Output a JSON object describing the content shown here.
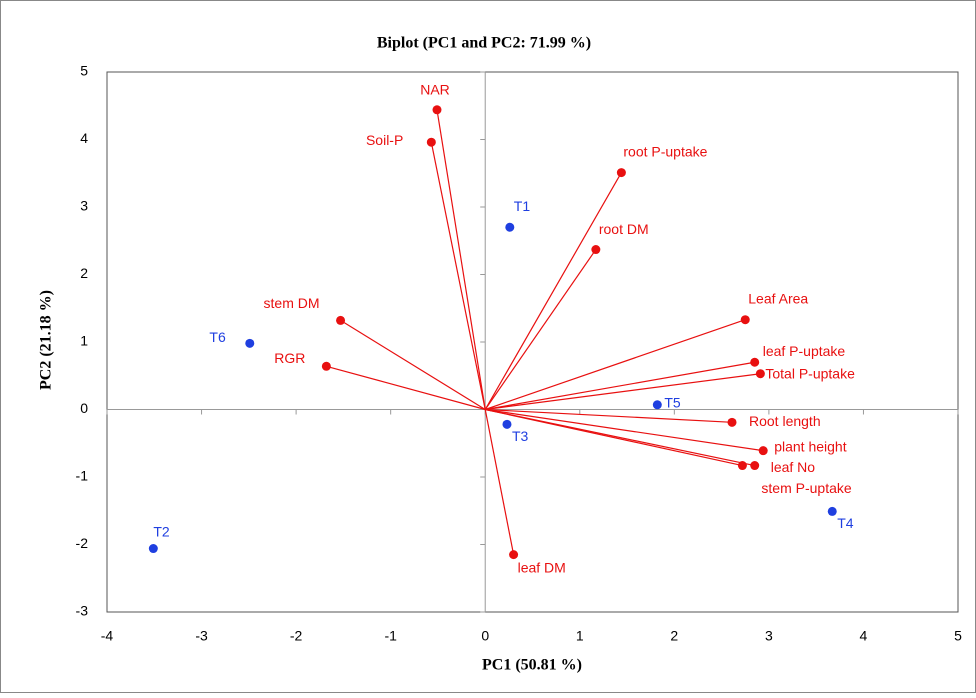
{
  "chart_data": {
    "type": "biplot",
    "title": "Biplot (PC1 and PC2: 71.99 %)",
    "x_label": "PC1 (50.81 %)",
    "y_label": "PC2 (21.18 %)",
    "xlim": [
      -4,
      5
    ],
    "xticks": [
      -4,
      -3,
      -2,
      -1,
      0,
      1,
      2,
      3,
      4,
      5
    ],
    "ylim": [
      -3,
      5
    ],
    "yticks": [
      -3,
      -2,
      -1,
      0,
      1,
      2,
      3,
      4,
      5
    ],
    "series": [
      {
        "color": "#1f3fe0",
        "arrows": false,
        "labels": [
          "T1",
          "T6",
          "T2",
          "T3",
          "T5",
          "T4"
        ],
        "x": [
          0.26,
          -2.49,
          -3.51,
          0.23,
          1.82,
          3.67
        ],
        "y": [
          2.7,
          0.98,
          -2.06,
          -0.22,
          0.07,
          -1.51
        ]
      },
      {
        "color": "#e81010",
        "arrows": true,
        "labels": [
          "NAR",
          "Soil-P",
          "root P-uptake",
          "root DM",
          "stem DM",
          "RGR",
          "Leaf Area",
          "leaf P-uptake",
          "Total P-uptake",
          "Root length",
          "plant height",
          "leaf No",
          "stem P-uptake",
          "leaf DM"
        ],
        "x": [
          -0.51,
          -0.57,
          1.44,
          1.17,
          -1.53,
          -1.68,
          2.75,
          2.85,
          2.91,
          2.61,
          2.94,
          2.85,
          2.72,
          0.3
        ],
        "y": [
          4.44,
          3.96,
          3.51,
          2.37,
          1.32,
          0.64,
          1.33,
          0.7,
          0.53,
          -0.19,
          -0.61,
          -0.83,
          -0.83,
          -2.15
        ]
      }
    ]
  }
}
